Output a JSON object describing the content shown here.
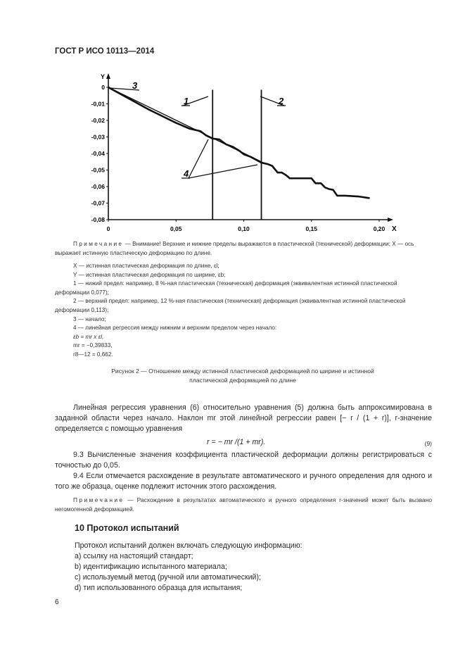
{
  "header": {
    "title": "ГОСТ Р ИСО 10113—2014"
  },
  "chart_data": {
    "type": "line",
    "xlabel": "X",
    "ylabel": "Y",
    "xlim": [
      0,
      0.2
    ],
    "ylim": [
      -0.08,
      0
    ],
    "x_ticks": [
      "0",
      "0,05",
      "0,10",
      "0,15",
      "0,20"
    ],
    "x_tick_values": [
      0,
      0.05,
      0.1,
      0.15,
      0.2
    ],
    "y_ticks": [
      "0",
      "-0,01",
      "-0,02",
      "-0,03",
      "-0,04",
      "-0,05",
      "-0,06",
      "-0,07",
      "-0,08"
    ],
    "y_tick_values": [
      0,
      -0.01,
      -0.02,
      -0.03,
      -0.04,
      -0.05,
      -0.06,
      -0.07,
      -0.08
    ],
    "grid": false,
    "series": [
      {
        "x": [
          0,
          0.01,
          0.02,
          0.03,
          0.04,
          0.05,
          0.06,
          0.068,
          0.072,
          0.077,
          0.082,
          0.087,
          0.092,
          0.097,
          0.1,
          0.105,
          0.113,
          0.118,
          0.121,
          0.125,
          0.128,
          0.131,
          0.134,
          0.14,
          0.15,
          0.153,
          0.157,
          0.16,
          0.163,
          0.166,
          0.169,
          0.175,
          0.185,
          0.193
        ],
        "y": [
          0,
          -0.0045,
          -0.009,
          -0.0135,
          -0.0175,
          -0.0215,
          -0.025,
          -0.0265,
          -0.029,
          -0.031,
          -0.0315,
          -0.0345,
          -0.036,
          -0.0385,
          -0.0405,
          -0.042,
          -0.0455,
          -0.0465,
          -0.0475,
          -0.0515,
          -0.0515,
          -0.053,
          -0.055,
          -0.055,
          -0.055,
          -0.058,
          -0.058,
          -0.0605,
          -0.0615,
          -0.062,
          -0.0655,
          -0.0655,
          -0.066,
          -0.067
        ]
      }
    ],
    "vertical_lines": [
      0.077,
      0.113
    ],
    "regression_line": {
      "x": [
        0,
        0.113
      ],
      "y": [
        0,
        -0.045
      ]
    },
    "annotations": [
      "1",
      "2",
      "3",
      "4"
    ]
  },
  "note1": {
    "label": "Примечание",
    "text": "— Внимание! Верхние и нижние пределы выражаются в пластической (технической) деформации; X — ось выражает истинную пластическую деформацию по длине."
  },
  "legend": [
    "X — истинная пластическая деформация по длине, εl;",
    "Y — истинная пластическая деформация по ширине, εb;",
    "1 — нижий предел: например, 8 %-ная пластическая (техническая) деформация (эквивалентная истинной пластической деформации 0,077);",
    "2 — верхний предел: например, 12 %-ная пластическая (техническая) деформация (эквивалентная истинной пластической деформации 0,113);",
    "3 — начало;",
    "4 — линейная регрессия между нижним и верхним пределом через начало:",
    "εb = mr x εl,",
    "mr = −0,39833,",
    "r8—12 = 0,662."
  ],
  "caption": "Рисунок 2 — Отношение между истинной пластической деформацией по ширине и истинной пластической деформацией по длине",
  "body": {
    "para1": "Линейная регрессия уравнения (6) относительно уравнения (5) должна быть аппроксимирована в заданной области через начало. Наклон mr этой линейной регрессии равен [− r / (1 + r)], r-значение определяется с помощью уравнения",
    "equation": "r = − mr /(1 + mr).",
    "equation_number": "(9)",
    "para93": "9.3 Вычисленные значения коэффициента пластической деформации должны регистрироваться с точностью до 0,05.",
    "para94": "9.4 Если отмечается расхождение в результате автоматического и ручного определения для одного и того же образца, оценке подлежит источник этого расхождения.",
    "note2_label": "Примечание",
    "note2_text": "— Расхождение в результатах автоматического и ручного определения r-значений может быть вызвано негомогенной деформацией."
  },
  "section10": {
    "heading": "10 Протокол испытаний",
    "intro": "Протокол испытаний должен включать следующую информацию:",
    "items": [
      "a) ссылку на настоящий стандарт;",
      "b) идентификацию испытанного материала;",
      "c) используемый метод (ручной или автоматический);",
      "d) тип использованного образца для испытания;"
    ]
  },
  "page_number": "6"
}
